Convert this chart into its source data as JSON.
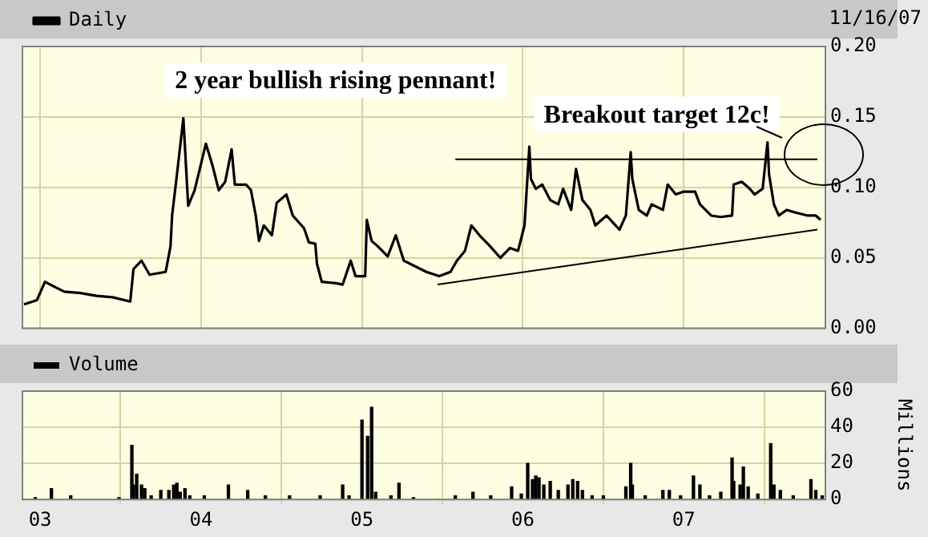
{
  "chart_data": [
    {
      "type": "line",
      "legend": "top left",
      "grid": true,
      "tick_labels": "y",
      "marker": "none",
      "annotations": [
        "11/16/07",
        "2 year bullish rising pennant!",
        "Breakout target 12c!"
      ],
      "xlim": [
        2002.89,
        2007.88
      ],
      "xticks": [
        {
          "value": 2003,
          "label": null
        },
        {
          "value": 2004,
          "label": null
        },
        {
          "value": 2005,
          "label": null
        },
        {
          "value": 2006,
          "label": null
        },
        {
          "value": 2007,
          "label": null
        }
      ],
      "ylim": [
        0,
        0.2
      ],
      "yticks": [
        {
          "value": 0,
          "label": "0.00"
        },
        {
          "value": 0.05,
          "label": "0.05"
        },
        {
          "value": 0.1,
          "label": "0.10"
        },
        {
          "value": 0.15,
          "label": "0.15"
        },
        {
          "value": 0.2,
          "label": "0.20"
        }
      ],
      "series": [
        {
          "name": "Daily",
          "color": "#000000",
          "x": [
            2002.9,
            2002.98,
            2003.03,
            2003.08,
            2003.15,
            2003.25,
            2003.35,
            2003.45,
            2003.56,
            2003.58,
            2003.63,
            2003.68,
            2003.78,
            2003.81,
            2003.82,
            2003.85,
            2003.89,
            2003.92,
            2003.96,
            2004.03,
            2004.07,
            2004.11,
            2004.15,
            2004.19,
            2004.21,
            2004.28,
            2004.31,
            2004.34,
            2004.36,
            2004.39,
            2004.44,
            2004.47,
            2004.53,
            2004.57,
            2004.64,
            2004.67,
            2004.71,
            2004.72,
            2004.75,
            2004.84,
            2004.88,
            2004.93,
            2004.96,
            2005.02,
            2005.03,
            2005.06,
            2005.1,
            2005.16,
            2005.21,
            2005.26,
            2005.33,
            2005.4,
            2005.48,
            2005.55,
            2005.59,
            2005.64,
            2005.68,
            2005.73,
            2005.79,
            2005.86,
            2005.92,
            2005.97,
            2006.01,
            2006.04,
            2006.05,
            2006.08,
            2006.12,
            2006.17,
            2006.22,
            2006.25,
            2006.3,
            2006.33,
            2006.37,
            2006.42,
            2006.45,
            2006.52,
            2006.6,
            2006.64,
            2006.67,
            2006.68,
            2006.72,
            2006.77,
            2006.8,
            2006.87,
            2006.9,
            2006.95,
            2007.0,
            2007.07,
            2007.1,
            2007.17,
            2007.23,
            2007.3,
            2007.31,
            2007.36,
            2007.41,
            2007.44,
            2007.49,
            2007.52,
            2007.53,
            2007.56,
            2007.59,
            2007.64,
            2007.7,
            2007.77,
            2007.82,
            2007.85
          ],
          "values": [
            0.017,
            0.02,
            0.033,
            0.03,
            0.026,
            0.025,
            0.023,
            0.022,
            0.019,
            0.042,
            0.048,
            0.038,
            0.04,
            0.058,
            0.08,
            0.109,
            0.149,
            0.087,
            0.098,
            0.131,
            0.116,
            0.098,
            0.104,
            0.127,
            0.102,
            0.102,
            0.098,
            0.08,
            0.062,
            0.073,
            0.066,
            0.089,
            0.095,
            0.08,
            0.071,
            0.061,
            0.06,
            0.046,
            0.033,
            0.032,
            0.031,
            0.048,
            0.037,
            0.037,
            0.077,
            0.062,
            0.058,
            0.051,
            0.066,
            0.048,
            0.044,
            0.04,
            0.037,
            0.04,
            0.048,
            0.055,
            0.073,
            0.066,
            0.059,
            0.05,
            0.057,
            0.055,
            0.073,
            0.129,
            0.106,
            0.099,
            0.102,
            0.091,
            0.088,
            0.099,
            0.084,
            0.113,
            0.091,
            0.084,
            0.073,
            0.08,
            0.07,
            0.08,
            0.125,
            0.106,
            0.084,
            0.08,
            0.088,
            0.084,
            0.102,
            0.095,
            0.097,
            0.097,
            0.088,
            0.08,
            0.079,
            0.08,
            0.102,
            0.104,
            0.099,
            0.095,
            0.099,
            0.132,
            0.109,
            0.088,
            0.08,
            0.084,
            0.082,
            0.08,
            0.08,
            0.077
          ]
        },
        {
          "type": "line",
          "color": "#000000",
          "x": [
            2005.47,
            2007.83
          ],
          "values": [
            0.031,
            0.07
          ]
        },
        {
          "type": "line",
          "color": "#000000",
          "x": [
            2005.58,
            2007.83
          ],
          "values": [
            0.12,
            0.12
          ]
        }
      ]
    },
    {
      "type": "bar",
      "legend": "top left",
      "grid": true,
      "y2label": "Millions",
      "xlim": [
        2002.89,
        2007.88
      ],
      "xticks": [
        {
          "value": 2003,
          "label": "03"
        },
        {
          "value": 2004,
          "label": "04"
        },
        {
          "value": 2005,
          "label": "05"
        },
        {
          "value": 2006,
          "label": "06"
        },
        {
          "value": 2007,
          "label": "07"
        }
      ],
      "ylim": [
        0,
        60
      ],
      "yticks": [
        0,
        20,
        40,
        60
      ],
      "series": [
        {
          "name": "Volume",
          "color": "#000000",
          "x": [
            2002.9,
            2002.97,
            2003.07,
            2003.19,
            2003.49,
            2003.57,
            2003.58,
            2003.6,
            2003.63,
            2003.65,
            2003.69,
            2003.75,
            2003.8,
            2003.83,
            2003.85,
            2003.87,
            2003.9,
            2003.93,
            2004.02,
            2004.17,
            2004.29,
            2004.4,
            2004.55,
            2004.74,
            2004.88,
            2004.92,
            2005.0,
            2005.02,
            2005.035,
            2005.06,
            2005.085,
            2005.18,
            2005.23,
            2005.32,
            2005.47,
            2005.58,
            2005.69,
            2005.8,
            2005.93,
            2005.99,
            2006.03,
            2006.06,
            2006.08,
            2006.1,
            2006.13,
            2006.17,
            2006.22,
            2006.28,
            2006.31,
            2006.34,
            2006.37,
            2006.43,
            2006.5,
            2006.64,
            2006.67,
            2006.68,
            2006.76,
            2006.87,
            2006.91,
            2006.98,
            2007.06,
            2007.1,
            2007.16,
            2007.23,
            2007.3,
            2007.31,
            2007.35,
            2007.37,
            2007.4,
            2007.46,
            2007.54,
            2007.56,
            2007.6,
            2007.68,
            2007.79,
            2007.82,
            2007.86
          ],
          "values": [
            0,
            1,
            6,
            2,
            1,
            30,
            8,
            14,
            8,
            6,
            2,
            5,
            5,
            8,
            9,
            4,
            6,
            2,
            2,
            8,
            5,
            2,
            2,
            2,
            8,
            2,
            44,
            null,
            35,
            51,
            4,
            2,
            9,
            1,
            0,
            2,
            4,
            2,
            7,
            3,
            20,
            11,
            13,
            12,
            8,
            10,
            5,
            8,
            11,
            10,
            5,
            2,
            2,
            7,
            20,
            8,
            2,
            5,
            5,
            2,
            13,
            8,
            2,
            4,
            23,
            10,
            8,
            18,
            7,
            3,
            31,
            8,
            5,
            2,
            11,
            5,
            2
          ]
        }
      ]
    }
  ]
}
